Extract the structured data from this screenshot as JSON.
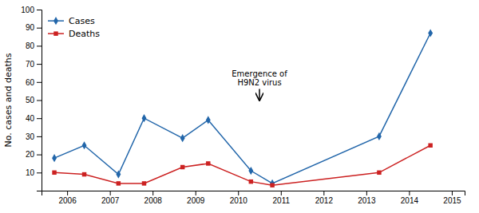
{
  "chart_data": {
    "type": "line",
    "x": [
      2005.7,
      2006.4,
      2007.2,
      2007.8,
      2008.7,
      2009.3,
      2010.3,
      2010.8,
      2013.3,
      2014.5
    ],
    "series": [
      {
        "name": "Cases",
        "color": "#2266aa",
        "marker": "diamond",
        "values": [
          18,
          25,
          9,
          40,
          29,
          39,
          11,
          4,
          30,
          87
        ]
      },
      {
        "name": "Deaths",
        "color": "#cc2222",
        "marker": "square",
        "values": [
          10,
          9,
          4,
          4,
          13,
          15,
          5,
          3,
          10,
          25
        ]
      }
    ],
    "xlim": [
      2005.4,
      2015.3
    ],
    "ylim": [
      0,
      100
    ],
    "xticks": [
      {
        "value": 2006,
        "label": "2006"
      },
      {
        "value": 2007,
        "label": "2007"
      },
      {
        "value": 2008,
        "label": "2008"
      },
      {
        "value": 2009,
        "label": "2009"
      },
      {
        "value": 2010,
        "label": "2010"
      },
      {
        "value": 2011,
        "label": "2011"
      },
      {
        "value": 2012,
        "label": "2012"
      },
      {
        "value": 2013,
        "label": "2013"
      },
      {
        "value": 2014,
        "label": "2014"
      },
      {
        "value": 2015,
        "label": "2015"
      }
    ],
    "yticks": [
      10,
      20,
      30,
      40,
      50,
      60,
      70,
      80,
      90,
      100
    ],
    "ylabel": "No. cases and deaths",
    "annotations": [
      {
        "lines": [
          "Emergence of",
          "H9N2 virus"
        ],
        "x": 2010.5,
        "y": 67,
        "arrow_y": 50
      }
    ],
    "legend": "upper left",
    "grid": false
  }
}
